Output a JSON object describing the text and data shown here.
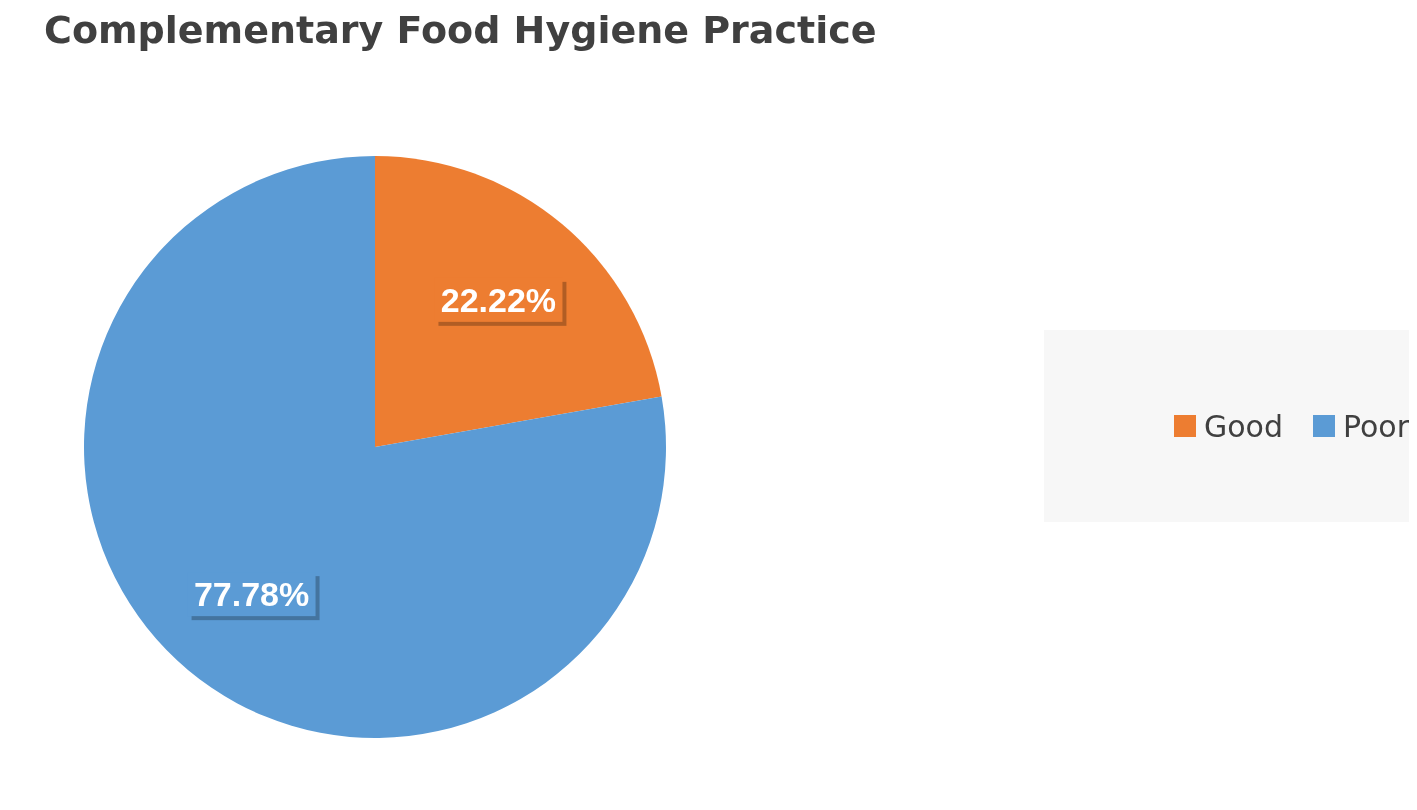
{
  "chart_data": {
    "type": "pie",
    "title": "Complementary Food Hygiene Practice",
    "categories": [
      "Good",
      "Poor"
    ],
    "values": [
      22.22,
      77.78
    ],
    "colors": [
      "#ed7d31",
      "#5b9bd5"
    ],
    "value_labels": [
      "22.22%",
      "77.78%"
    ],
    "legend": "right"
  }
}
